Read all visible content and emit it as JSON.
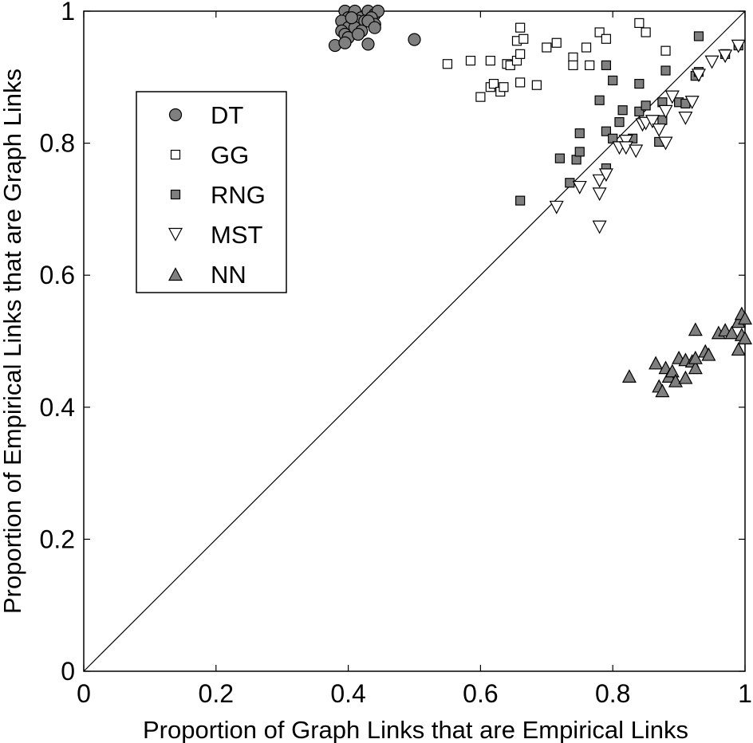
{
  "chart_data": {
    "type": "scatter",
    "title": "",
    "xlabel": "Proportion of Graph Links that are Empirical Links",
    "ylabel": "Proportion of Empirical Links that are Graph Links",
    "xlim": [
      0,
      1
    ],
    "ylim": [
      0,
      1
    ],
    "xticks": [
      "0",
      "0.2",
      "0.4",
      "0.6",
      "0.8",
      "1"
    ],
    "yticks": [
      "0",
      "0.2",
      "0.4",
      "0.6",
      "0.8",
      "1"
    ],
    "grid": false,
    "legend_position": "upper-left",
    "reference_line": "y = x",
    "colors": {
      "gray_fill": "#7f7f7f",
      "white_fill": "#ffffff",
      "stroke": "#000000"
    },
    "series": [
      {
        "name": "DT",
        "marker": "circle",
        "fill": "#7f7f7f",
        "points": [
          [
            0.395,
            1.0
          ],
          [
            0.4,
            0.99
          ],
          [
            0.41,
            1.0
          ],
          [
            0.42,
            0.99
          ],
          [
            0.43,
            1.0
          ],
          [
            0.44,
            0.995
          ],
          [
            0.445,
            1.0
          ],
          [
            0.39,
            0.985
          ],
          [
            0.405,
            0.98
          ],
          [
            0.415,
            0.985
          ],
          [
            0.425,
            0.985
          ],
          [
            0.435,
            0.99
          ],
          [
            0.44,
            0.98
          ],
          [
            0.4,
            0.975
          ],
          [
            0.39,
            0.97
          ],
          [
            0.395,
            0.965
          ],
          [
            0.4,
            0.96
          ],
          [
            0.41,
            0.975
          ],
          [
            0.42,
            0.97
          ],
          [
            0.43,
            0.985
          ],
          [
            0.44,
            0.975
          ],
          [
            0.38,
            0.948
          ],
          [
            0.395,
            0.952
          ],
          [
            0.43,
            0.95
          ],
          [
            0.415,
            0.965
          ],
          [
            0.405,
            0.99
          ],
          [
            0.5,
            0.957
          ]
        ]
      },
      {
        "name": "GG",
        "marker": "square",
        "fill": "#ffffff",
        "points": [
          [
            0.55,
            0.92
          ],
          [
            0.585,
            0.925
          ],
          [
            0.615,
            0.925
          ],
          [
            0.64,
            0.92
          ],
          [
            0.645,
            0.918
          ],
          [
            0.655,
            0.925
          ],
          [
            0.66,
            0.935
          ],
          [
            0.66,
            0.975
          ],
          [
            0.655,
            0.955
          ],
          [
            0.665,
            0.958
          ],
          [
            0.685,
            0.888
          ],
          [
            0.7,
            0.945
          ],
          [
            0.715,
            0.952
          ],
          [
            0.74,
            0.93
          ],
          [
            0.74,
            0.918
          ],
          [
            0.76,
            0.945
          ],
          [
            0.765,
            0.918
          ],
          [
            0.78,
            0.968
          ],
          [
            0.79,
            0.958
          ],
          [
            0.84,
            0.982
          ],
          [
            0.85,
            0.968
          ],
          [
            0.88,
            0.94
          ],
          [
            0.6,
            0.87
          ],
          [
            0.615,
            0.885
          ],
          [
            0.62,
            0.89
          ],
          [
            0.63,
            0.878
          ],
          [
            0.635,
            0.885
          ],
          [
            0.66,
            0.892
          ]
        ]
      },
      {
        "name": "RNG",
        "marker": "square",
        "fill": "#7f7f7f",
        "points": [
          [
            0.66,
            0.713
          ],
          [
            0.72,
            0.777
          ],
          [
            0.735,
            0.74
          ],
          [
            0.745,
            0.775
          ],
          [
            0.75,
            0.787
          ],
          [
            0.75,
            0.815
          ],
          [
            0.78,
            0.865
          ],
          [
            0.79,
            0.918
          ],
          [
            0.79,
            0.818
          ],
          [
            0.79,
            0.762
          ],
          [
            0.8,
            0.895
          ],
          [
            0.8,
            0.807
          ],
          [
            0.81,
            0.832
          ],
          [
            0.815,
            0.85
          ],
          [
            0.83,
            0.807
          ],
          [
            0.84,
            0.848
          ],
          [
            0.84,
            0.89
          ],
          [
            0.85,
            0.857
          ],
          [
            0.87,
            0.802
          ],
          [
            0.875,
            0.835
          ],
          [
            0.875,
            0.862
          ],
          [
            0.88,
            0.91
          ],
          [
            0.9,
            0.862
          ],
          [
            0.91,
            0.86
          ],
          [
            0.925,
            0.902
          ],
          [
            0.93,
            0.908
          ],
          [
            0.93,
            0.962
          ],
          [
            0.97,
            0.935
          ],
          [
            0.99,
            0.948
          ]
        ]
      },
      {
        "name": "MST",
        "marker": "triangle-down",
        "fill": "#ffffff",
        "points": [
          [
            0.715,
            0.703
          ],
          [
            0.75,
            0.733
          ],
          [
            0.78,
            0.673
          ],
          [
            0.78,
            0.723
          ],
          [
            0.78,
            0.743
          ],
          [
            0.79,
            0.752
          ],
          [
            0.81,
            0.793
          ],
          [
            0.82,
            0.803
          ],
          [
            0.82,
            0.793
          ],
          [
            0.835,
            0.788
          ],
          [
            0.845,
            0.828
          ],
          [
            0.85,
            0.83
          ],
          [
            0.86,
            0.833
          ],
          [
            0.87,
            0.82
          ],
          [
            0.88,
            0.848
          ],
          [
            0.88,
            0.8
          ],
          [
            0.89,
            0.87
          ],
          [
            0.91,
            0.838
          ],
          [
            0.92,
            0.862
          ],
          [
            0.93,
            0.903
          ],
          [
            0.95,
            0.923
          ],
          [
            0.97,
            0.932
          ],
          [
            0.99,
            0.947
          ]
        ]
      },
      {
        "name": "NN",
        "marker": "triangle-up",
        "fill": "#7f7f7f",
        "points": [
          [
            0.825,
            0.447
          ],
          [
            0.865,
            0.467
          ],
          [
            0.87,
            0.432
          ],
          [
            0.875,
            0.425
          ],
          [
            0.88,
            0.46
          ],
          [
            0.885,
            0.447
          ],
          [
            0.89,
            0.455
          ],
          [
            0.895,
            0.44
          ],
          [
            0.9,
            0.475
          ],
          [
            0.91,
            0.445
          ],
          [
            0.91,
            0.472
          ],
          [
            0.92,
            0.47
          ],
          [
            0.925,
            0.46
          ],
          [
            0.925,
            0.475
          ],
          [
            0.925,
            0.518
          ],
          [
            0.94,
            0.485
          ],
          [
            0.945,
            0.48
          ],
          [
            0.96,
            0.513
          ],
          [
            0.97,
            0.517
          ],
          [
            0.98,
            0.513
          ],
          [
            0.99,
            0.488
          ],
          [
            0.99,
            0.53
          ],
          [
            0.995,
            0.542
          ],
          [
            0.995,
            0.51
          ],
          [
            1.0,
            0.505
          ],
          [
            1.0,
            0.535
          ]
        ]
      }
    ]
  }
}
